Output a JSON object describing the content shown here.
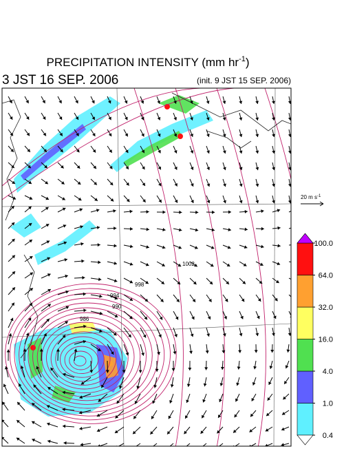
{
  "title": {
    "main": "PRECIPITATION INTENSITY (mm hr",
    "exponent": "-1",
    "close": ")"
  },
  "valid_time": "3 JST 16 SEP. 2006",
  "init_time": "(init. 9 JST 15 SEP. 2006)",
  "wind_key": {
    "unit": "20 m s",
    "exponent": "-1"
  },
  "contour_labels": [
    "1002",
    "998",
    "994",
    "990",
    "986"
  ],
  "colorbar": {
    "levels": [
      {
        "value": 0.4,
        "label": "0.4"
      },
      {
        "value": 1,
        "label": "1.0"
      },
      {
        "value": 4,
        "label": "4.0"
      },
      {
        "value": 16,
        "label": "16.0"
      },
      {
        "value": 32,
        "label": "32.0"
      },
      {
        "value": 64,
        "label": "64.0"
      },
      {
        "value": 100,
        "label": "100.0"
      }
    ],
    "colors": [
      "#5ff0ff",
      "#6060ff",
      "#50e050",
      "#ffff60",
      "#ffa030",
      "#ff1010"
    ],
    "over_color": "#c000ff",
    "under_color": "#ffffff"
  }
}
